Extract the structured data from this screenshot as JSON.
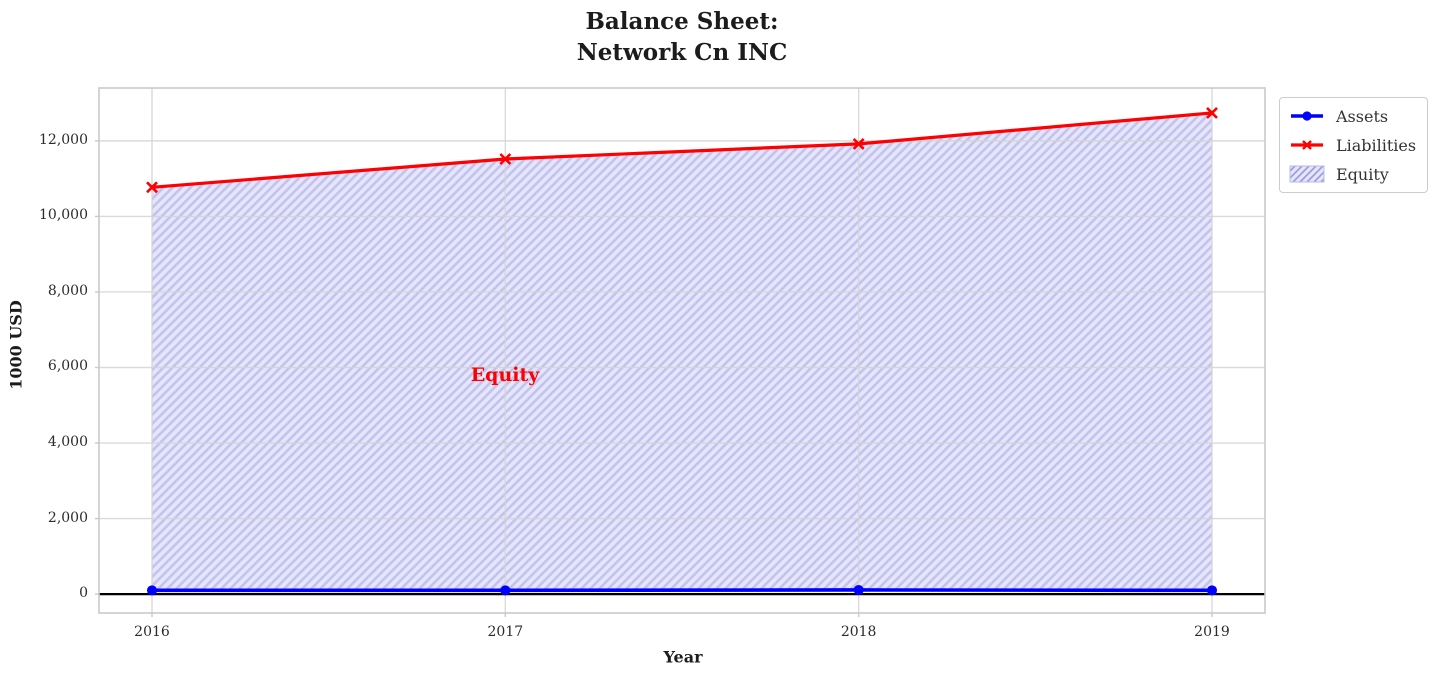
{
  "title": {
    "line1": "Balance Sheet:",
    "line2": "Network Cn INC"
  },
  "axes": {
    "xlabel": "Year",
    "ylabel": "1000 USD",
    "x_tick_labels": [
      "2016",
      "2017",
      "2018",
      "2019"
    ],
    "y_tick_labels": [
      "0",
      "2,000",
      "4,000",
      "6,000",
      "8,000",
      "10,000",
      "12,000"
    ]
  },
  "annotation": {
    "text": "Equity",
    "color": "#ff0000"
  },
  "legend": {
    "items": [
      {
        "label": "Assets",
        "marker": "circle",
        "color": "#0000ff"
      },
      {
        "label": "Liabilities",
        "marker": "x",
        "color": "#ff0000"
      },
      {
        "label": "Equity",
        "marker": "hatched-patch",
        "fill": "#e6e6fa",
        "hatch_color": "#b9b9ec"
      }
    ]
  },
  "chart_data": {
    "type": "line",
    "title": "Balance Sheet: Network Cn INC",
    "xlabel": "Year",
    "ylabel": "1000 USD",
    "x": [
      2016,
      2017,
      2018,
      2019
    ],
    "series": [
      {
        "name": "Assets",
        "values": [
          100,
          100,
          110,
          100
        ],
        "color": "#0000ff",
        "marker": "circle",
        "linewidth": 3.6
      },
      {
        "name": "Liabilities",
        "values": [
          10770,
          11520,
          11920,
          12740
        ],
        "color": "#ff0000",
        "marker": "x",
        "linewidth": 3.2
      }
    ],
    "area_between": {
      "name": "Equity",
      "lower": "Assets",
      "upper": "Liabilities",
      "fill": "#e6e6fa",
      "hatch": "//",
      "hatch_color": "#c3c3ef"
    },
    "xlim": [
      2015.85,
      2019.15
    ],
    "ylim": [
      -500,
      13400
    ],
    "x_ticks": [
      2016,
      2017,
      2018,
      2019
    ],
    "y_ticks": [
      0,
      2000,
      4000,
      6000,
      8000,
      10000,
      12000
    ],
    "grid": true,
    "zero_line": true,
    "legend_position": "outside-upper-right"
  },
  "colors": {
    "grid": "#d4d4d4",
    "spine": "#c9c9c9",
    "zero_line": "#000000",
    "text": "#1c1c1c",
    "tick_text": "#2b2b2b"
  }
}
